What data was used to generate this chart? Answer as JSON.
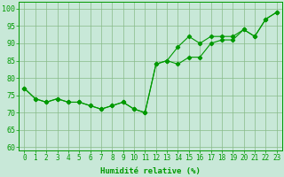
{
  "series1": [
    77,
    74,
    73,
    74,
    73,
    73,
    72,
    71,
    72,
    73,
    71,
    70,
    84,
    85,
    89,
    92,
    90,
    92,
    92,
    92,
    94,
    92,
    97,
    99
  ],
  "series2": [
    77,
    74,
    73,
    74,
    73,
    73,
    72,
    71,
    72,
    73,
    71,
    70,
    84,
    85,
    84,
    86,
    86,
    90,
    91,
    91,
    94,
    92,
    97,
    99
  ],
  "x": [
    0,
    1,
    2,
    3,
    4,
    5,
    6,
    7,
    8,
    9,
    10,
    11,
    12,
    13,
    14,
    15,
    16,
    17,
    18,
    19,
    20,
    21,
    22,
    23
  ],
  "line_color": "#009900",
  "bg_color": "#c8e8d8",
  "grid_color": "#88bb88",
  "xlabel": "Humidité relative (%)",
  "ylim": [
    59,
    102
  ],
  "xlim": [
    -0.5,
    23.5
  ],
  "yticks": [
    60,
    65,
    70,
    75,
    80,
    85,
    90,
    95,
    100
  ],
  "xticks": [
    0,
    1,
    2,
    3,
    4,
    5,
    6,
    7,
    8,
    9,
    10,
    11,
    12,
    13,
    14,
    15,
    16,
    17,
    18,
    19,
    20,
    21,
    22,
    23
  ],
  "xlabel_fontsize": 6.5,
  "tick_fontsize": 5.5,
  "ytick_fontsize": 6.0
}
